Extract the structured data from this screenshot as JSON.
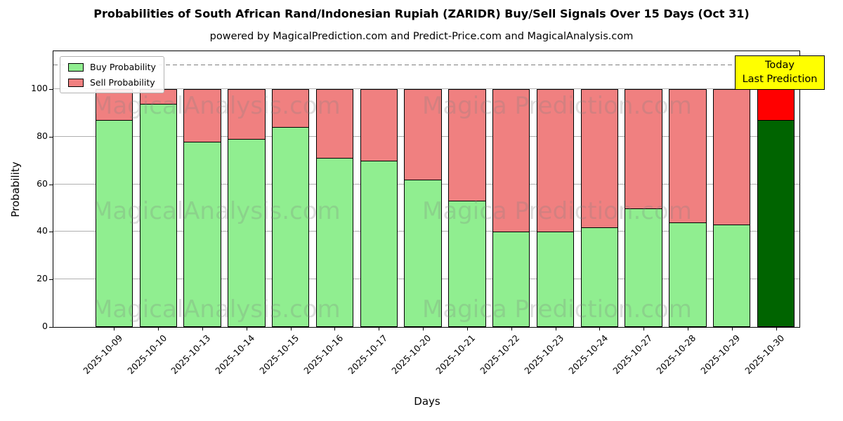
{
  "chart_data": {
    "type": "bar",
    "stacked": true,
    "title": "Probabilities of South African Rand/Indonesian Rupiah (ZARIDR) Buy/Sell Signals Over 15 Days (Oct 31)",
    "subtitle": "powered by MagicalPrediction.com and Predict-Price.com and MagicalAnalysis.com",
    "xlabel": "Days",
    "ylabel": "Probability",
    "ylim": [
      0,
      116
    ],
    "yticks": [
      0,
      20,
      40,
      60,
      80,
      100
    ],
    "grid": true,
    "dashed_line_y": 110,
    "legend_position": "upper left",
    "bar_edge_color": "#000000",
    "categories": [
      "2025-10-09",
      "2025-10-10",
      "2025-10-13",
      "2025-10-14",
      "2025-10-15",
      "2025-10-16",
      "2025-10-17",
      "2025-10-20",
      "2025-10-21",
      "2025-10-22",
      "2025-10-23",
      "2025-10-24",
      "2025-10-27",
      "2025-10-28",
      "2025-10-29",
      "2025-10-30"
    ],
    "series": [
      {
        "name": "Buy Probability",
        "color": "#90ee90",
        "values": [
          87,
          94,
          78,
          79,
          84,
          71,
          70,
          62,
          53,
          40,
          40,
          42,
          50,
          44,
          43,
          87
        ]
      },
      {
        "name": "Sell Probability",
        "color": "#f08080",
        "values": [
          13,
          6,
          22,
          21,
          16,
          29,
          30,
          38,
          47,
          60,
          60,
          58,
          50,
          56,
          57,
          13
        ]
      }
    ],
    "today_bar": {
      "index": 15,
      "buy_color": "#006400",
      "sell_color": "#ff0000"
    },
    "annotation": {
      "line1": "Today",
      "line2": "Last Prediction",
      "bg_color": "#ffff00"
    },
    "watermarks": {
      "left": "MagicalAnalysis.com",
      "right": "Magica Prediction.com"
    }
  }
}
